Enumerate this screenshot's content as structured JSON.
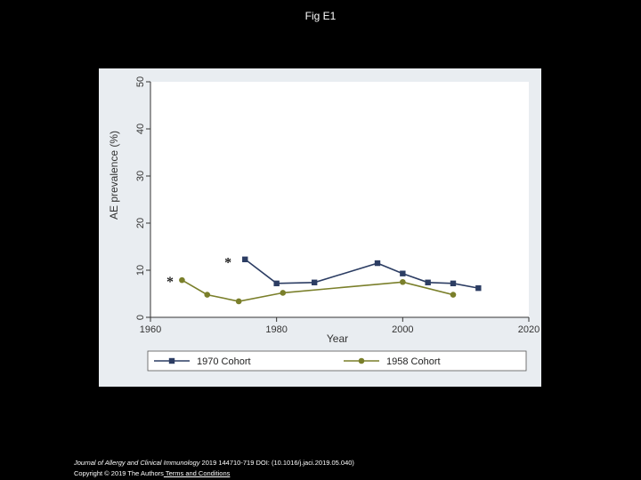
{
  "slide": {
    "title": "Fig E1",
    "citation_journal": "Journal of Allergy and Clinical Immunology",
    "citation_rest": " 2019 144710-719 DOI: (10.1016/j.jaci.2019.05.040)",
    "copyright_text": "Copyright © 2019 The Authors",
    "terms_link": " Terms and Conditions"
  },
  "colors": {
    "panel_bg": "#e9edf1",
    "plot_bg": "#ffffff",
    "cohort_1970": "#2c3d63",
    "cohort_1958": "#7a7f2a",
    "axis": "#333333"
  },
  "chart_data": {
    "type": "line",
    "title": "",
    "xlabel": "Year",
    "ylabel": "AE prevalence (%)",
    "xlim": [
      1960,
      2020
    ],
    "ylim": [
      0,
      50
    ],
    "x_ticks": [
      1960,
      1980,
      2000,
      2020
    ],
    "y_ticks": [
      0,
      10,
      20,
      30,
      40,
      50
    ],
    "grid": false,
    "legend_position": "bottom",
    "series": [
      {
        "name": "1970 Cohort",
        "color": "#2c3d63",
        "marker": "square",
        "x": [
          1975,
          1980,
          1986,
          1996,
          2000,
          2004,
          2008,
          2012
        ],
        "y": [
          12.3,
          7.2,
          7.4,
          11.5,
          9.3,
          7.4,
          7.2,
          6.2
        ]
      },
      {
        "name": "1958 Cohort",
        "color": "#7a7f2a",
        "marker": "circle",
        "x": [
          1965,
          1969,
          1974,
          1981,
          2000,
          2008
        ],
        "y": [
          7.9,
          4.8,
          3.4,
          5.2,
          7.5,
          4.8
        ]
      }
    ],
    "annotations": [
      {
        "text": "*",
        "x": 1972.3,
        "y": 10.7
      },
      {
        "text": "*",
        "x": 1963.1,
        "y": 6.6
      }
    ]
  }
}
